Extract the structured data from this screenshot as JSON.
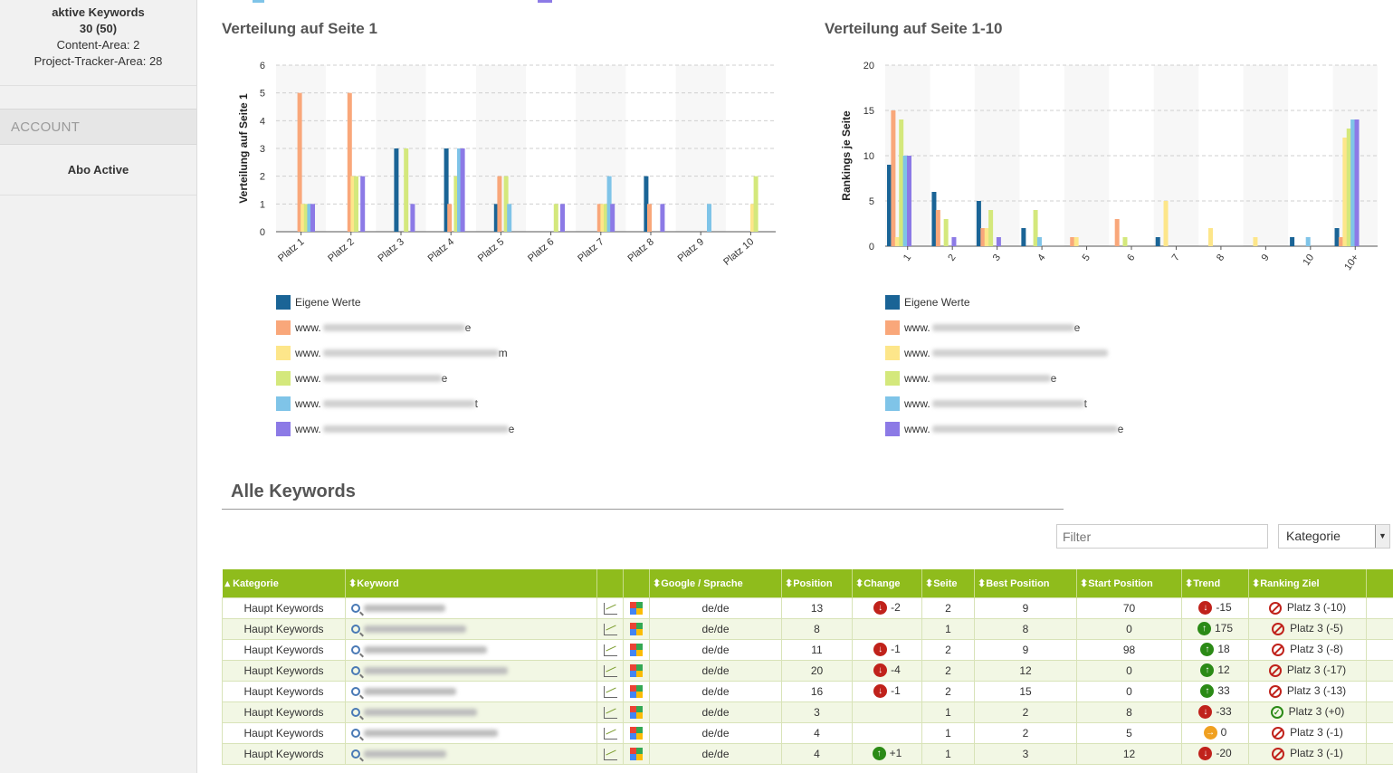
{
  "sidebar": {
    "stats_title": "aktive Keywords",
    "stats_count": "30 (50)",
    "content_area": "Content-Area: 2",
    "tracker_area": "Project-Tracker-Area: 28",
    "account_heading": "ACCOUNT",
    "abo_status": "Abo Active"
  },
  "chart_data": [
    {
      "type": "bar",
      "title": "Verteilung auf Seite 1",
      "ylabel": "Verteilung auf Seite 1",
      "ylim": [
        0,
        6
      ],
      "yticks": [
        "0",
        "1",
        "2",
        "3",
        "4",
        "5",
        "6"
      ],
      "categories": [
        "Platz 1",
        "Platz 2",
        "Platz 3",
        "Platz 4",
        "Platz 5",
        "Platz 6",
        "Platz 7",
        "Platz 8",
        "Platz 9",
        "Platz 10"
      ],
      "series": [
        {
          "name": "Eigene Werte",
          "color": "#1a6496",
          "values": [
            0,
            0,
            3,
            3,
            1,
            0,
            0,
            2,
            0,
            0
          ]
        },
        {
          "name": "www.",
          "color": "#f9a77a",
          "values": [
            5,
            5,
            0,
            1,
            2,
            0,
            1,
            1,
            0,
            0
          ]
        },
        {
          "name": "www.",
          "color": "#fde68a",
          "values": [
            1,
            2,
            0,
            0,
            0,
            0,
            1,
            0,
            0,
            1
          ]
        },
        {
          "name": "www.",
          "color": "#d4e87c",
          "values": [
            1,
            2,
            3,
            2,
            2,
            1,
            1,
            0,
            0,
            2
          ]
        },
        {
          "name": "www.",
          "color": "#7fc4e8",
          "values": [
            1,
            0,
            0,
            3,
            1,
            0,
            2,
            0,
            1,
            0
          ]
        },
        {
          "name": "www.",
          "color": "#8c7ae6",
          "values": [
            1,
            2,
            1,
            3,
            0,
            1,
            1,
            1,
            0,
            0
          ]
        }
      ],
      "legend_position": "bottom-left"
    },
    {
      "type": "bar",
      "title": "Verteilung auf Seite 1-10",
      "ylabel": "Rankings je Seite",
      "ylim": [
        0,
        20
      ],
      "yticks": [
        "0",
        "5",
        "10",
        "15",
        "20"
      ],
      "categories": [
        "1",
        "2",
        "3",
        "4",
        "5",
        "6",
        "7",
        "8",
        "9",
        "10",
        "10+"
      ],
      "series": [
        {
          "name": "Eigene Werte",
          "color": "#1a6496",
          "values": [
            9,
            6,
            5,
            2,
            0,
            0,
            1,
            0,
            0,
            1,
            2
          ]
        },
        {
          "name": "www.",
          "color": "#f9a77a",
          "values": [
            15,
            4,
            2,
            0,
            1,
            3,
            0,
            0,
            0,
            0,
            1
          ]
        },
        {
          "name": "www.",
          "color": "#fde68a",
          "values": [
            1,
            0,
            2,
            0,
            1,
            0,
            5,
            2,
            1,
            0,
            12
          ]
        },
        {
          "name": "www.",
          "color": "#d4e87c",
          "values": [
            14,
            3,
            4,
            4,
            0,
            1,
            0,
            0,
            0,
            0,
            13
          ]
        },
        {
          "name": "www.",
          "color": "#7fc4e8",
          "values": [
            10,
            0,
            0,
            1,
            0,
            0,
            0,
            0,
            0,
            1,
            14
          ]
        },
        {
          "name": "www.",
          "color": "#8c7ae6",
          "values": [
            10,
            1,
            1,
            0,
            0,
            0,
            0,
            0,
            0,
            0,
            14
          ]
        }
      ],
      "legend_position": "bottom-left"
    }
  ],
  "legend_left": {
    "items": [
      {
        "label": "Eigene Werte",
        "color": "#1a6496",
        "suffix": ""
      },
      {
        "label": "www.",
        "color": "#f9a77a",
        "suffix": "e"
      },
      {
        "label": "www.",
        "color": "#fde68a",
        "suffix": "m"
      },
      {
        "label": "www.",
        "color": "#d4e87c",
        "suffix": "e"
      },
      {
        "label": "www.",
        "color": "#7fc4e8",
        "suffix": "t"
      },
      {
        "label": "www.",
        "color": "#8c7ae6",
        "suffix": "e"
      }
    ]
  },
  "legend_right": {
    "items": [
      {
        "label": "Eigene Werte",
        "color": "#1a6496",
        "suffix": ""
      },
      {
        "label": "www.",
        "color": "#f9a77a",
        "suffix": "e"
      },
      {
        "label": "www.",
        "color": "#fde68a",
        "suffix": ""
      },
      {
        "label": "www.",
        "color": "#d4e87c",
        "suffix": "e"
      },
      {
        "label": "www.",
        "color": "#7fc4e8",
        "suffix": "t"
      },
      {
        "label": "www.",
        "color": "#8c7ae6",
        "suffix": "e"
      }
    ]
  },
  "keywords": {
    "title": "Alle Keywords",
    "filter_placeholder": "Filter",
    "category_select": "Kategorie",
    "columns": [
      "Kategorie",
      "Keyword",
      "",
      "",
      "Google / Sprache",
      "Position",
      "Change",
      "Seite",
      "Best Position",
      "Start Position",
      "Trend",
      "Ranking Ziel"
    ],
    "rows": [
      {
        "kategorie": "Haupt Keywords",
        "google": "de/de",
        "position": "13",
        "change": "-2",
        "change_dir": "down",
        "seite": "2",
        "best": "9",
        "start": "70",
        "trend": "-15",
        "trend_dir": "down",
        "ziel": "Platz 3 (-10)",
        "ziel_ok": false
      },
      {
        "kategorie": "Haupt Keywords",
        "google": "de/de",
        "position": "8",
        "change": "",
        "change_dir": "",
        "seite": "1",
        "best": "8",
        "start": "0",
        "trend": "175",
        "trend_dir": "up",
        "ziel": "Platz 3 (-5)",
        "ziel_ok": false
      },
      {
        "kategorie": "Haupt Keywords",
        "google": "de/de",
        "position": "11",
        "change": "-1",
        "change_dir": "down",
        "seite": "2",
        "best": "9",
        "start": "98",
        "trend": "18",
        "trend_dir": "up",
        "ziel": "Platz 3 (-8)",
        "ziel_ok": false
      },
      {
        "kategorie": "Haupt Keywords",
        "google": "de/de",
        "position": "20",
        "change": "-4",
        "change_dir": "down",
        "seite": "2",
        "best": "12",
        "start": "0",
        "trend": "12",
        "trend_dir": "up",
        "ziel": "Platz 3 (-17)",
        "ziel_ok": false
      },
      {
        "kategorie": "Haupt Keywords",
        "google": "de/de",
        "position": "16",
        "change": "-1",
        "change_dir": "down",
        "seite": "2",
        "best": "15",
        "start": "0",
        "trend": "33",
        "trend_dir": "up",
        "ziel": "Platz 3 (-13)",
        "ziel_ok": false
      },
      {
        "kategorie": "Haupt Keywords",
        "google": "de/de",
        "position": "3",
        "change": "",
        "change_dir": "",
        "seite": "1",
        "best": "2",
        "start": "8",
        "trend": "-33",
        "trend_dir": "down",
        "ziel": "Platz 3 (+0)",
        "ziel_ok": true
      },
      {
        "kategorie": "Haupt Keywords",
        "google": "de/de",
        "position": "4",
        "change": "",
        "change_dir": "",
        "seite": "1",
        "best": "2",
        "start": "5",
        "trend": "0",
        "trend_dir": "flat",
        "ziel": "Platz 3 (-1)",
        "ziel_ok": false
      },
      {
        "kategorie": "Haupt Keywords",
        "google": "de/de",
        "position": "4",
        "change": "+1",
        "change_dir": "up",
        "seite": "1",
        "best": "3",
        "start": "12",
        "trend": "-20",
        "trend_dir": "down",
        "ziel": "Platz 3 (-1)",
        "ziel_ok": false
      }
    ]
  }
}
